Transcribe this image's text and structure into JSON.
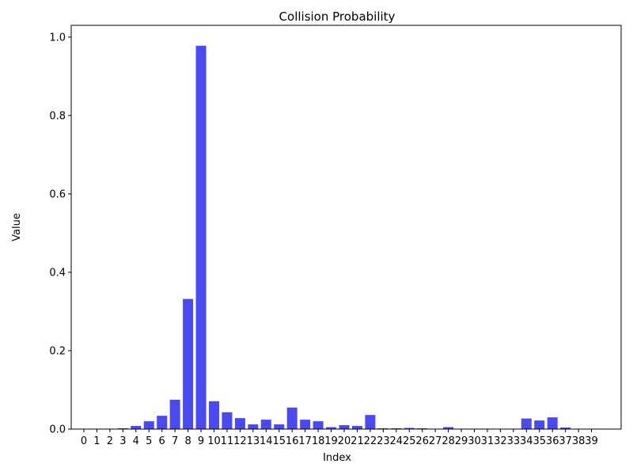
{
  "chart_data": {
    "type": "bar",
    "title": "Collision Probability",
    "xlabel": "Index",
    "ylabel": "Value",
    "ylim": [
      0,
      1.03
    ],
    "y_ticks": [
      "0.0",
      "0.2",
      "0.4",
      "0.6",
      "0.8",
      "1.0"
    ],
    "bar_color": "#4a4af5",
    "grid": false,
    "categories": [
      "0",
      "1",
      "2",
      "3",
      "4",
      "5",
      "6",
      "7",
      "8",
      "9",
      "10",
      "11",
      "12",
      "13",
      "14",
      "15",
      "16",
      "17",
      "18",
      "19",
      "20",
      "21",
      "22",
      "23",
      "24",
      "25",
      "26",
      "27",
      "28",
      "29",
      "30",
      "31",
      "32",
      "33",
      "34",
      "35",
      "36",
      "37",
      "38",
      "39"
    ],
    "values": [
      0.0,
      0.0,
      0.0,
      0.002,
      0.008,
      0.02,
      0.034,
      0.075,
      0.332,
      0.978,
      0.071,
      0.043,
      0.028,
      0.012,
      0.024,
      0.012,
      0.055,
      0.024,
      0.02,
      0.005,
      0.01,
      0.008,
      0.036,
      0.002,
      0.002,
      0.003,
      0.002,
      0.0,
      0.005,
      0.0,
      0.0,
      0.0,
      0.0,
      0.0,
      0.027,
      0.022,
      0.03,
      0.004,
      0.0,
      0.0
    ]
  }
}
